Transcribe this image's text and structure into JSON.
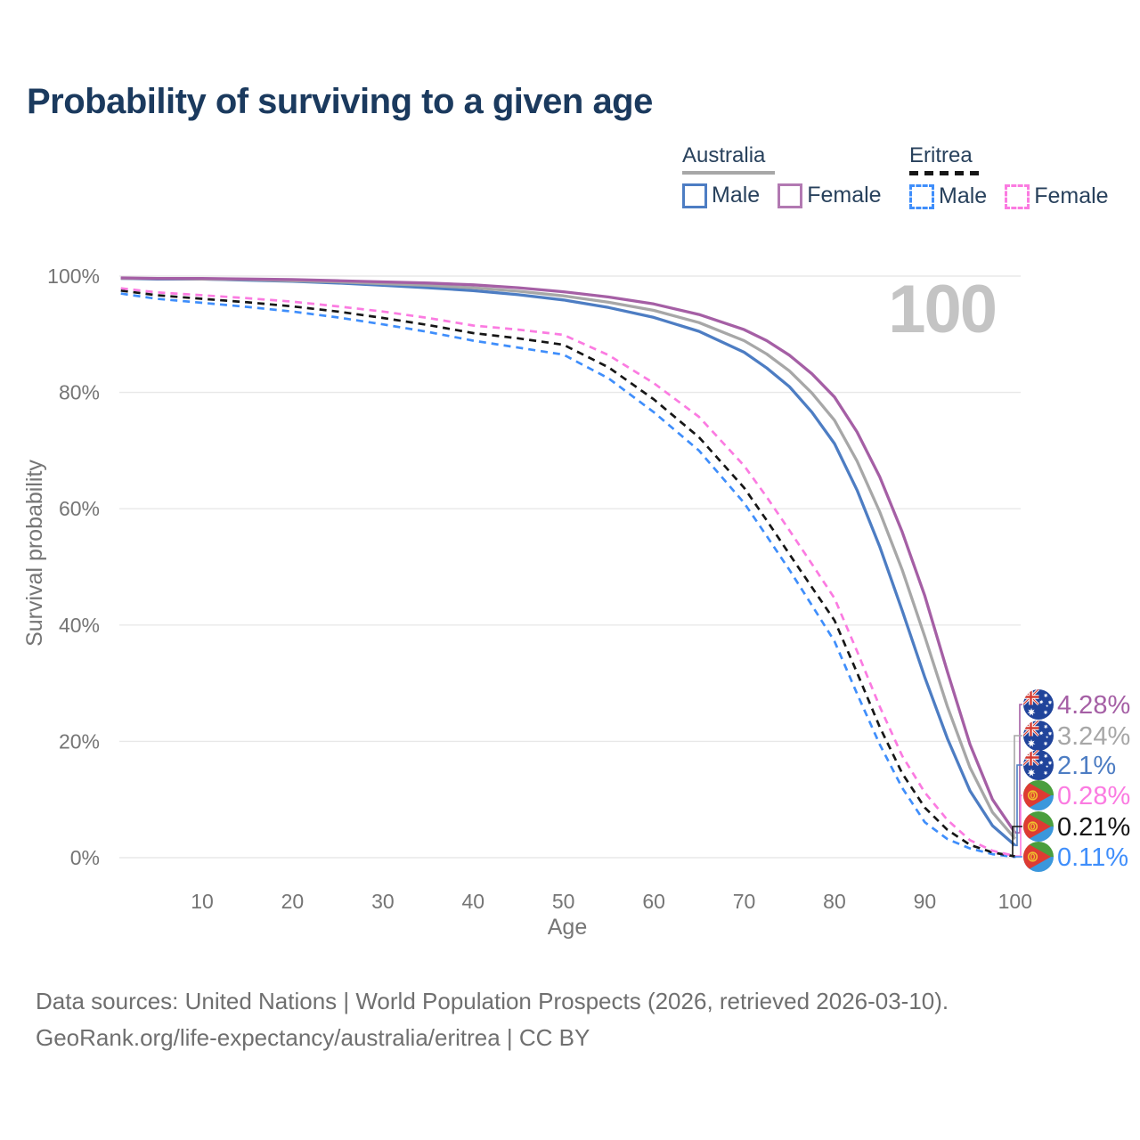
{
  "title": "Probability of surviving to a given age",
  "watermark": "100",
  "legend": {
    "groups": [
      {
        "name": "Australia",
        "line_style": "solid",
        "items": [
          {
            "label": "Male",
            "color": "#4d7dc3",
            "dashed": false
          },
          {
            "label": "Female",
            "color": "#b279b2",
            "dashed": false
          }
        ]
      },
      {
        "name": "Eritrea",
        "line_style": "dashed",
        "items": [
          {
            "label": "Male",
            "color": "#3f8efb",
            "dashed": true
          },
          {
            "label": "Female",
            "color": "#fb7be1",
            "dashed": true
          }
        ]
      }
    ]
  },
  "chart_data": {
    "type": "line",
    "title": "Probability of surviving to a given age",
    "xlabel": "Age",
    "ylabel": "Survival probability",
    "x_ticks": [
      "10",
      "20",
      "30",
      "40",
      "50",
      "60",
      "70",
      "80",
      "90",
      "100"
    ],
    "y_ticks": [
      "0%",
      "20%",
      "40%",
      "60%",
      "80%",
      "100%"
    ],
    "xlim": [
      0,
      100
    ],
    "ylim": [
      0,
      100
    ],
    "grid": "horizontal",
    "legend_position": "top-right",
    "ages": [
      1,
      5,
      10,
      15,
      20,
      25,
      30,
      35,
      40,
      45,
      50,
      55,
      60,
      65,
      70,
      72.5,
      75,
      77.5,
      80,
      82.5,
      85,
      87.5,
      90,
      92.5,
      95,
      97.5,
      100
    ],
    "series": [
      {
        "id": "au-female",
        "name": "Australia Female",
        "color": "#a55fa5",
        "dashed": false,
        "flag": "australia",
        "end_label": "4.28%",
        "values": [
          99.7,
          99.6,
          99.6,
          99.5,
          99.4,
          99.2,
          99.0,
          98.8,
          98.5,
          98.0,
          97.3,
          96.4,
          95.2,
          93.4,
          90.8,
          88.9,
          86.4,
          83.2,
          79.2,
          73.2,
          65.5,
          56.0,
          45.0,
          32.0,
          19.5,
          10.0,
          4.28
        ]
      },
      {
        "id": "au-all",
        "name": "Australia",
        "color": "#a7a7a7",
        "dashed": false,
        "flag": "australia",
        "end_label": "3.24%",
        "values": [
          99.6,
          99.6,
          99.5,
          99.4,
          99.2,
          99.0,
          98.7,
          98.4,
          98.0,
          97.4,
          96.6,
          95.5,
          94.1,
          92.0,
          88.9,
          86.6,
          83.7,
          79.9,
          75.2,
          68.2,
          59.5,
          49.5,
          38.0,
          26.0,
          15.5,
          7.8,
          3.24
        ]
      },
      {
        "id": "au-male",
        "name": "Australia Male",
        "color": "#4d7dc3",
        "dashed": false,
        "flag": "australia",
        "end_label": "2.1%",
        "values": [
          99.6,
          99.5,
          99.5,
          99.3,
          99.1,
          98.8,
          98.4,
          98.0,
          97.5,
          96.8,
          95.9,
          94.6,
          92.9,
          90.5,
          86.9,
          84.2,
          81.0,
          76.6,
          71.2,
          63.2,
          53.5,
          42.5,
          31.0,
          20.5,
          11.5,
          5.5,
          2.1
        ]
      },
      {
        "id": "er-female",
        "name": "Eritrea Female",
        "color": "#fb7be1",
        "dashed": true,
        "flag": "eritrea",
        "end_label": "0.28%",
        "values": [
          97.9,
          97.2,
          96.7,
          96.2,
          95.6,
          94.8,
          93.9,
          92.8,
          91.5,
          90.8,
          89.9,
          86.4,
          81.6,
          75.8,
          67.4,
          62.0,
          56.3,
          50.5,
          44.6,
          35.5,
          26.0,
          17.5,
          11.2,
          6.5,
          3.0,
          1.2,
          0.28
        ]
      },
      {
        "id": "er-all",
        "name": "Eritrea",
        "color": "#161616",
        "dashed": true,
        "flag": "eritrea",
        "end_label": "0.21%",
        "values": [
          97.5,
          96.7,
          96.1,
          95.5,
          94.8,
          93.9,
          92.8,
          91.6,
          90.2,
          89.3,
          88.2,
          84.3,
          78.8,
          72.3,
          63.6,
          58.0,
          52.2,
          46.5,
          40.8,
          31.8,
          22.5,
          14.5,
          8.6,
          4.8,
          2.2,
          0.9,
          0.21
        ]
      },
      {
        "id": "er-male",
        "name": "Eritrea Male",
        "color": "#3f8efb",
        "dashed": true,
        "flag": "eritrea",
        "end_label": "0.11%",
        "values": [
          97.0,
          96.1,
          95.4,
          94.7,
          93.9,
          92.9,
          91.7,
          90.4,
          88.9,
          87.7,
          86.5,
          82.4,
          76.6,
          70.0,
          61.0,
          55.3,
          49.5,
          43.4,
          37.2,
          28.2,
          19.5,
          12.0,
          6.1,
          3.2,
          1.6,
          0.6,
          0.11
        ]
      }
    ]
  },
  "footer": {
    "line1": "Data sources: United Nations | World Population Prospects (2026, retrieved 2026-03-10).",
    "line2": "GeoRank.org/life-expectancy/australia/eritrea | CC BY"
  }
}
